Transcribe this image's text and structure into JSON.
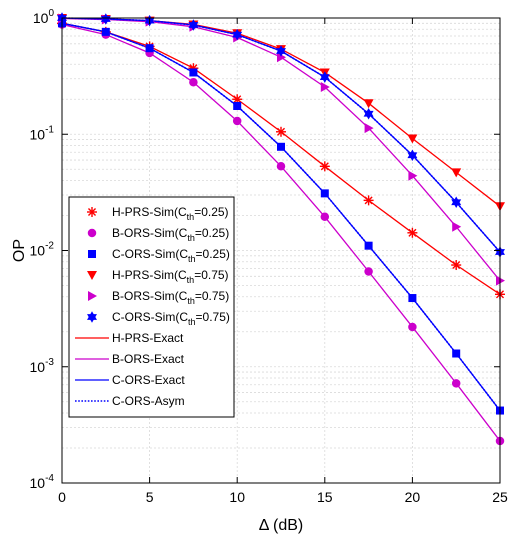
{
  "chart_data": {
    "type": "line",
    "xlabel": "Δ (dB)",
    "ylabel": "OP",
    "xlim": [
      0,
      25
    ],
    "ylim": [
      0.0001,
      1
    ],
    "yscale": "log",
    "grid": true,
    "legend_position": "bottom-left",
    "x_ticks": [
      {
        "value": 0,
        "label": "0"
      },
      {
        "value": 5,
        "label": "5"
      },
      {
        "value": 10,
        "label": "10"
      },
      {
        "value": 15,
        "label": "15"
      },
      {
        "value": 20,
        "label": "20"
      },
      {
        "value": 25,
        "label": "25"
      }
    ],
    "y_ticks": [
      {
        "value": 1,
        "base": "10",
        "exp": "0"
      },
      {
        "value": 0.1,
        "base": "10",
        "exp": "-1"
      },
      {
        "value": 0.01,
        "base": "10",
        "exp": "-2"
      },
      {
        "value": 0.001,
        "base": "10",
        "exp": "-3"
      },
      {
        "value": 0.0001,
        "base": "10",
        "exp": "-4"
      }
    ],
    "x_sim": [
      0,
      2.5,
      5,
      7.5,
      10,
      12.5,
      15,
      17.5,
      20,
      22.5,
      25
    ],
    "x_curve": [
      0,
      2.5,
      5,
      7.5,
      10,
      12.5,
      15,
      17.5,
      20,
      22.5,
      25
    ],
    "series": [
      {
        "name": "H-PRS-Sim",
        "sub": "th",
        "cth": "=0.25",
        "kind": "marker",
        "marker": "asterisk",
        "color": "#ff0000",
        "values": [
          0.9,
          0.76,
          0.57,
          0.37,
          0.2,
          0.105,
          0.053,
          0.027,
          0.0142,
          0.0075,
          0.0042
        ]
      },
      {
        "name": "B-ORS-Sim",
        "sub": "th",
        "cth": "=0.25",
        "kind": "marker",
        "marker": "circle",
        "color": "#cc00cc",
        "values": [
          0.88,
          0.72,
          0.5,
          0.28,
          0.13,
          0.053,
          0.0195,
          0.0066,
          0.0022,
          0.00072,
          0.00023
        ]
      },
      {
        "name": "C-ORS-Sim",
        "sub": "th",
        "cth": "=0.25",
        "kind": "marker",
        "marker": "square",
        "color": "#0000ff",
        "values": [
          0.9,
          0.76,
          0.55,
          0.34,
          0.175,
          0.078,
          0.031,
          0.011,
          0.0039,
          0.0013,
          0.00042
        ]
      },
      {
        "name": "H-PRS-Sim",
        "sub": "th",
        "cth": "=0.75",
        "kind": "marker",
        "marker": "triangle-down",
        "color": "#ff0000",
        "values": [
          1.0,
          0.98,
          0.95,
          0.88,
          0.74,
          0.54,
          0.34,
          0.185,
          0.092,
          0.047,
          0.024
        ]
      },
      {
        "name": "B-ORS-Sim",
        "sub": "th",
        "cth": "=0.75",
        "kind": "marker",
        "marker": "triangle-right",
        "color": "#cc00cc",
        "values": [
          0.99,
          0.97,
          0.93,
          0.84,
          0.68,
          0.46,
          0.255,
          0.113,
          0.044,
          0.016,
          0.0055
        ]
      },
      {
        "name": "C-ORS-Sim",
        "sub": "th",
        "cth": "=0.75",
        "kind": "marker",
        "marker": "hexagram",
        "color": "#0000ff",
        "values": [
          1.0,
          0.98,
          0.95,
          0.87,
          0.72,
          0.52,
          0.31,
          0.15,
          0.066,
          0.026,
          0.0097
        ]
      },
      {
        "name": "H-PRS-Exact",
        "kind": "line",
        "color": "#ff0000",
        "dash": "solid",
        "curves": [
          "H-PRS-0.25",
          "H-PRS-0.75"
        ]
      },
      {
        "name": "B-ORS-Exact",
        "kind": "line",
        "color": "#cc00cc",
        "dash": "solid",
        "curves": [
          "B-ORS-0.25",
          "B-ORS-0.75"
        ]
      },
      {
        "name": "C-ORS-Exact",
        "kind": "line",
        "color": "#0000ff",
        "dash": "solid",
        "curves": [
          "C-ORS-0.25",
          "C-ORS-0.75"
        ]
      },
      {
        "name": "C-ORS-Asym",
        "kind": "line",
        "color": "#0000ff",
        "dash": "dotted",
        "curves": [
          "C-ORS-0.25",
          "C-ORS-0.75"
        ]
      }
    ],
    "curves": {
      "H-PRS-0.25": [
        0.9,
        0.76,
        0.57,
        0.37,
        0.2,
        0.105,
        0.053,
        0.027,
        0.0142,
        0.0075,
        0.0042
      ],
      "B-ORS-0.25": [
        0.88,
        0.72,
        0.5,
        0.28,
        0.13,
        0.053,
        0.0195,
        0.0066,
        0.0022,
        0.00072,
        0.00023
      ],
      "C-ORS-0.25": [
        0.9,
        0.76,
        0.55,
        0.34,
        0.175,
        0.078,
        0.031,
        0.011,
        0.0039,
        0.0013,
        0.00042
      ],
      "H-PRS-0.75": [
        1.0,
        0.98,
        0.95,
        0.88,
        0.74,
        0.54,
        0.34,
        0.185,
        0.092,
        0.047,
        0.024
      ],
      "B-ORS-0.75": [
        0.99,
        0.97,
        0.93,
        0.84,
        0.68,
        0.46,
        0.255,
        0.113,
        0.044,
        0.016,
        0.0055
      ],
      "C-ORS-0.75": [
        1.0,
        0.98,
        0.95,
        0.87,
        0.72,
        0.52,
        0.31,
        0.15,
        0.066,
        0.026,
        0.0097
      ]
    }
  }
}
